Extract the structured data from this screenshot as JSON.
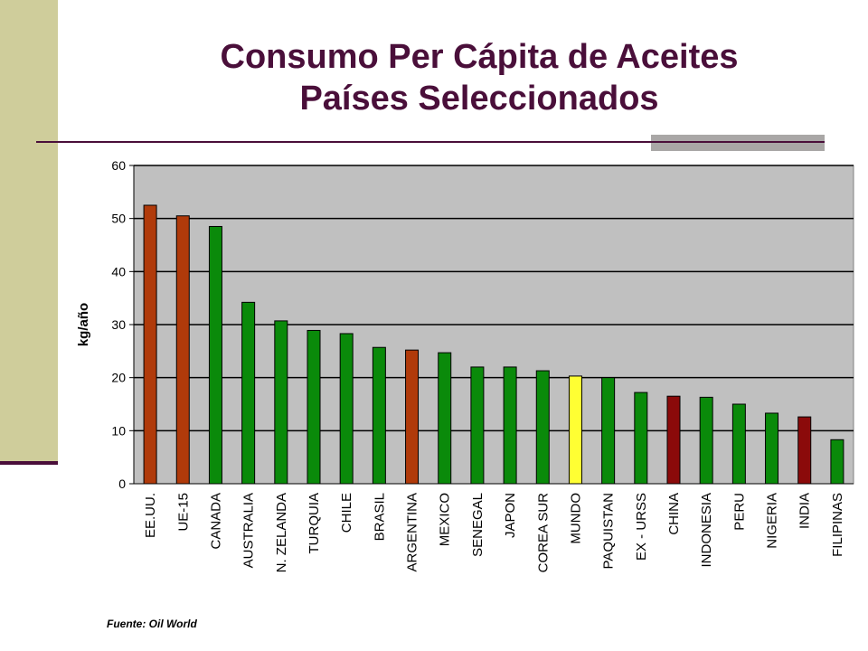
{
  "slide": {
    "title_line1": "Consumo Per Cápita de Aceites",
    "title_line2": "Países Seleccionados",
    "source": "Fuente: Oil World"
  },
  "chart_data": {
    "type": "bar",
    "ylabel": "kg/año",
    "xlabel": "",
    "ylim": [
      0,
      60
    ],
    "yticks": [
      0,
      10,
      20,
      30,
      40,
      50,
      60
    ],
    "grid": true,
    "plot_background": "#c0c0c0",
    "categories": [
      "EE.UU.",
      "UE-15",
      "CANADA",
      "AUSTRALIA",
      "N. ZELANDA",
      "TURQUIA",
      "CHILE",
      "BRASIL",
      "ARGENTINA",
      "MEXICO",
      "SENEGAL",
      "JAPON",
      "COREA SUR",
      "MUNDO",
      "PAQUISTAN",
      "EX - URSS",
      "CHINA",
      "INDONESIA",
      "PERU",
      "NIGERIA",
      "INDIA",
      "FILIPINAS"
    ],
    "values": [
      52.5,
      50.5,
      48.5,
      34.2,
      30.7,
      28.9,
      28.3,
      25.7,
      25.2,
      24.7,
      22.0,
      22.0,
      21.3,
      20.3,
      20.0,
      17.2,
      16.5,
      16.3,
      15.0,
      13.3,
      12.6,
      8.3
    ],
    "colors": [
      "#b03a0a",
      "#b03a0a",
      "#0a8a0a",
      "#0a8a0a",
      "#0a8a0a",
      "#0a8a0a",
      "#0a8a0a",
      "#0a8a0a",
      "#b03a0a",
      "#0a8a0a",
      "#0a8a0a",
      "#0a8a0a",
      "#0a8a0a",
      "#ffff33",
      "#0a8a0a",
      "#0a8a0a",
      "#8b0a0a",
      "#0a8a0a",
      "#0a8a0a",
      "#0a8a0a",
      "#8b0a0a",
      "#0a8a0a"
    ]
  }
}
